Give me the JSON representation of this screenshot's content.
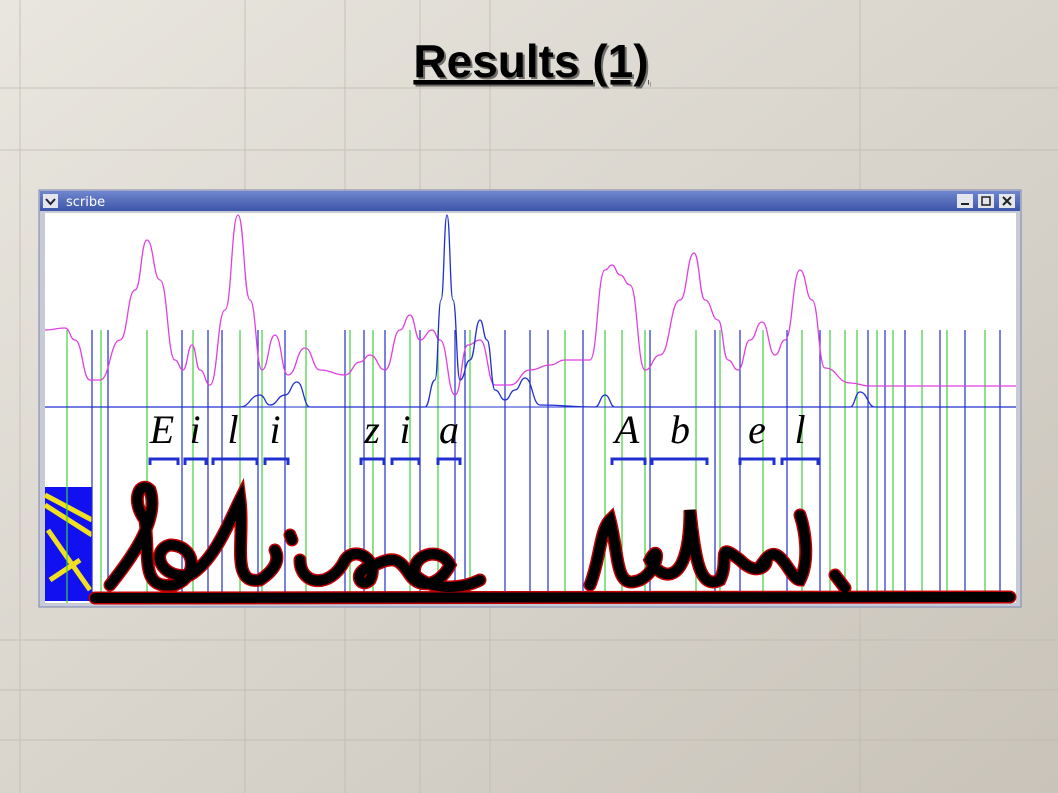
{
  "slide": {
    "title": "Results (1)"
  },
  "window": {
    "title": "scribe"
  },
  "letters": [
    "E",
    "i",
    "l",
    "i",
    "z",
    "i",
    "a",
    "A",
    "b",
    "e",
    "l"
  ]
}
